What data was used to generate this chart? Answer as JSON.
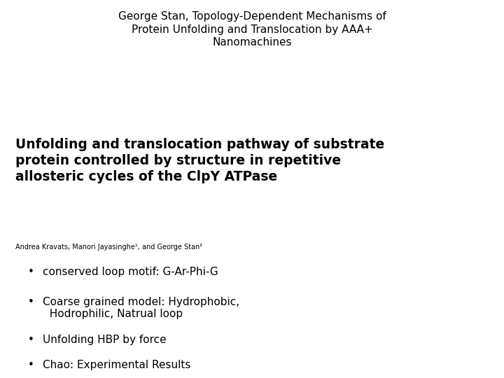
{
  "background_color": "#ffffff",
  "title": "George Stan, Topology-Dependent Mechanisms of\nProtein Unfolding and Translocation by AAA+\nNanomachines",
  "title_fontsize": 11,
  "title_color": "#000000",
  "paper_title_line1": "Unfolding and translocation pathway of substrate",
  "paper_title_line2": "protein controlled by structure in repetitive",
  "paper_title_line3": "allosteric cycles of the ClpY ATPase",
  "paper_title_fontsize": 13.5,
  "authors": "Andrea Kravats, Manori Jayasinghe¹, and George Stan²",
  "authors_fontsize": 7,
  "bullet_points": [
    "conserved loop motif: G-Ar-Phi-G",
    "Coarse grained model: Hydrophobic,\n  Hodrophilic, Natrual loop",
    "Unfolding HBP by force",
    "Chao: Experimental Results"
  ],
  "bullet_fontsize": 11
}
